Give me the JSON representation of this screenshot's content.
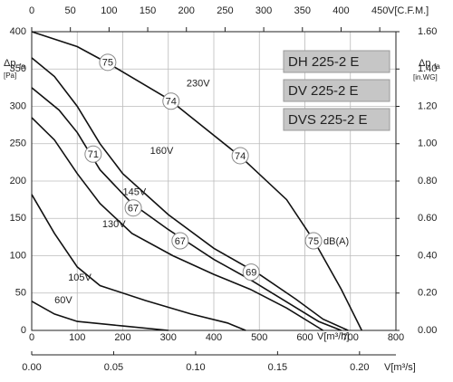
{
  "chart_data": {
    "type": "line",
    "x_label": "V[m³/h]",
    "x_top_label": "V[C.F.M.]",
    "x_bottom_label": "V[m³/s]",
    "y_label": "Δp",
    "y_label_sub": "fa",
    "y_unit": "[Pa]",
    "y2_label": "Δp",
    "y2_label_sub": "fa",
    "y2_unit": "[in.WG]",
    "xlim": [
      0,
      800
    ],
    "xticks": [
      0,
      100,
      200,
      300,
      400,
      500,
      600,
      700,
      800
    ],
    "x_top_lim": [
      0,
      470.9
    ],
    "x_top_ticks": [
      0,
      50,
      100,
      150,
      200,
      250,
      300,
      350,
      400,
      450
    ],
    "x_bottom_lim": [
      0,
      0.2222
    ],
    "x_bottom_ticks": [
      {
        "value": 0,
        "label": "0.00"
      },
      {
        "value": 0.05,
        "label": "0.05"
      },
      {
        "value": 0.1,
        "label": "0.10"
      },
      {
        "value": 0.15,
        "label": "0.15"
      },
      {
        "value": 0.2,
        "label": "0.20"
      }
    ],
    "ylim": [
      0,
      400
    ],
    "yticks": [
      0,
      50,
      100,
      150,
      200,
      250,
      300,
      350,
      400
    ],
    "y2lim": [
      0,
      1.6
    ],
    "y2ticks": [
      {
        "value": 0,
        "label": "0.00"
      },
      {
        "value": 0.2,
        "label": "0.20"
      },
      {
        "value": 0.4,
        "label": "0.40"
      },
      {
        "value": 0.6,
        "label": "0.60"
      },
      {
        "value": 0.8,
        "label": "0.80"
      },
      {
        "value": 1.0,
        "label": "1.00"
      },
      {
        "value": 1.2,
        "label": "1.20"
      },
      {
        "value": 1.4,
        "label": "1.40"
      },
      {
        "value": 1.6,
        "label": "1.60"
      }
    ],
    "grid": true,
    "series": [
      {
        "name": "230V",
        "label_at": [
          340,
          330
        ],
        "x": [
          0,
          100,
          170,
          300,
          460,
          560,
          620,
          680,
          725
        ],
        "values": [
          400,
          380,
          357,
          310,
          232,
          175,
          120,
          55,
          0
        ]
      },
      {
        "name": "160V",
        "label_at": [
          260,
          240
        ],
        "x": [
          0,
          50,
          100,
          150,
          200,
          300,
          400,
          500,
          580,
          640,
          695
        ],
        "values": [
          365,
          340,
          300,
          250,
          210,
          155,
          110,
          75,
          42,
          15,
          0
        ]
      },
      {
        "name": "145V",
        "label_at": [
          200,
          185
        ],
        "x": [
          0,
          60,
          100,
          150,
          220,
          300,
          400,
          480,
          560,
          630,
          680
        ],
        "values": [
          325,
          295,
          265,
          215,
          170,
          135,
          95,
          68,
          38,
          12,
          0
        ]
      },
      {
        "name": "130V",
        "label_at": [
          155,
          142
        ],
        "x": [
          0,
          50,
          100,
          150,
          220,
          310,
          400,
          480,
          560,
          640
        ],
        "values": [
          285,
          255,
          210,
          170,
          130,
          100,
          75,
          55,
          30,
          0
        ]
      },
      {
        "name": "105V",
        "label_at": [
          80,
          70
        ],
        "x": [
          0,
          50,
          100,
          150,
          250,
          350,
          430,
          470
        ],
        "values": [
          182,
          130,
          85,
          60,
          40,
          22,
          10,
          0
        ]
      },
      {
        "name": "60V",
        "label_at": [
          50,
          40
        ],
        "x": [
          0,
          50,
          100,
          200,
          300
        ],
        "values": [
          39,
          22,
          12,
          6,
          0
        ]
      }
    ],
    "db_labels": [
      {
        "value": 75,
        "x": 167,
        "y": 359
      },
      {
        "value": 74,
        "x": 306,
        "y": 307
      },
      {
        "value": 74,
        "x": 458,
        "y": 234
      },
      {
        "value": 75,
        "x": 619,
        "y": 120,
        "unit": "dB(A)"
      },
      {
        "value": 71,
        "x": 135,
        "y": 236
      },
      {
        "value": 67,
        "x": 223,
        "y": 164
      },
      {
        "value": 67,
        "x": 326,
        "y": 120
      },
      {
        "value": 69,
        "x": 482,
        "y": 78
      }
    ],
    "models": [
      "DH 225-2 E",
      "DV 225-2 E",
      "DVS 225-2 E"
    ]
  }
}
